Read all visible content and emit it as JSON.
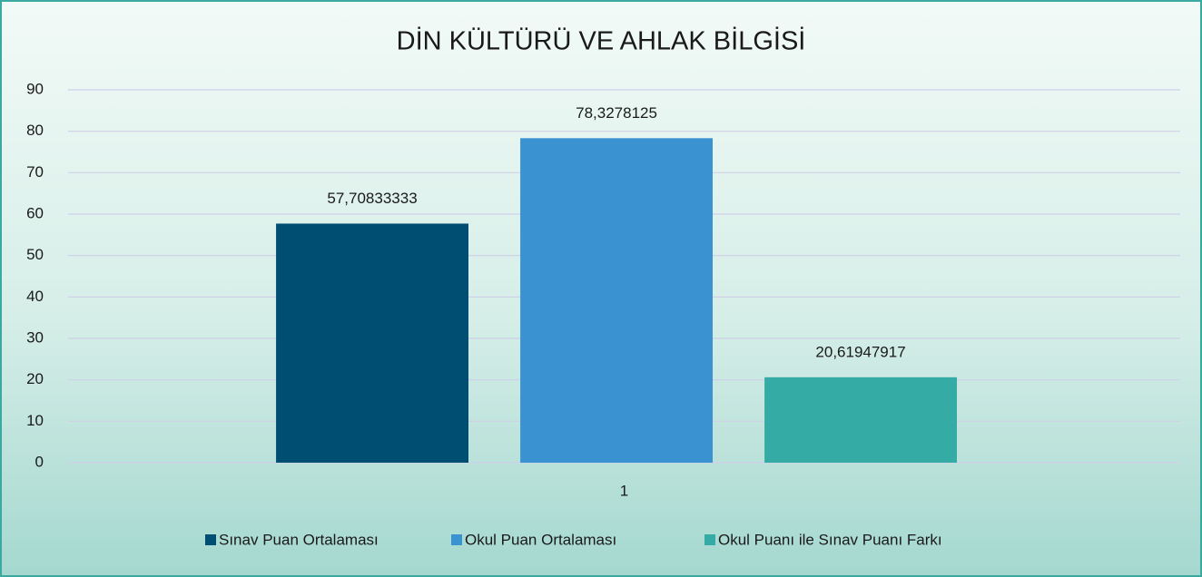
{
  "chart_data": {
    "type": "bar",
    "title": "DİN KÜLTÜRÜ VE AHLAK BİLGİSİ",
    "categories": [
      "1"
    ],
    "series": [
      {
        "name": "Sınav Puan Ortalaması",
        "color": "#004f72",
        "values": [
          57.70833333
        ],
        "value_labels": [
          "57,70833333"
        ]
      },
      {
        "name": "Okul Puan Ortalaması",
        "color": "#3a93d0",
        "values": [
          78.3278125
        ],
        "value_labels": [
          "78,3278125"
        ]
      },
      {
        "name": "Okul Puanı ile Sınav Puanı Farkı",
        "color": "#35aba5",
        "values": [
          20.61947917
        ],
        "value_labels": [
          "20,61947917"
        ]
      }
    ],
    "ylim": [
      0,
      90
    ],
    "yticks": [
      0,
      10,
      20,
      30,
      40,
      50,
      60,
      70,
      80,
      90
    ],
    "grid": true,
    "legend": "bottom"
  }
}
